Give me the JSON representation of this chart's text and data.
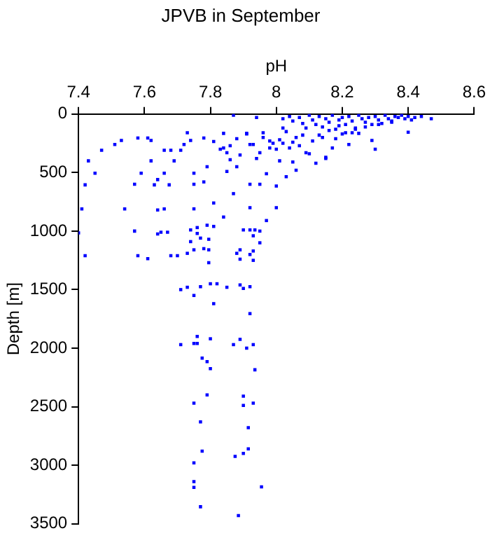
{
  "chart_data": {
    "type": "scatter",
    "title": "JPVB in September",
    "xlabel": "pH",
    "ylabel": "Depth [m]",
    "xlim": [
      7.4,
      8.6
    ],
    "xticks": [
      7.4,
      7.6,
      7.8,
      8,
      8.2,
      8.4,
      8.6
    ],
    "ylim": [
      3500,
      0
    ],
    "yticks": [
      0,
      500,
      1000,
      1500,
      2000,
      2500,
      3000,
      3500
    ],
    "grid": false,
    "legend": false,
    "marker": "square",
    "series": [
      {
        "color": "#0000ff",
        "x": [
          7.41,
          7.42,
          7.43,
          7.45,
          7.47,
          7.51,
          7.53,
          7.54,
          7.57,
          7.58,
          7.59,
          7.61,
          7.62,
          7.62,
          7.63,
          7.64,
          7.64,
          7.66,
          7.66,
          7.66,
          7.675,
          7.68,
          7.69,
          7.71,
          7.72,
          7.73,
          7.75,
          7.74,
          7.75,
          7.75,
          7.78,
          7.78,
          7.79,
          7.81,
          7.81,
          7.84,
          7.84,
          7.84,
          7.87,
          7.87,
          7.85,
          7.86,
          7.88,
          7.91,
          7.92,
          7.92,
          7.94,
          7.94,
          7.95,
          7.97,
          7.98,
          8.0,
          8.0,
          8.01,
          8.03,
          8.05,
          8.06,
          8.09,
          8.12,
          8.15,
          8.17,
          8.22,
          8.25,
          8.3,
          8.29,
          8.4,
          8.47,
          8.44,
          7.4,
          7.42,
          7.57,
          7.58,
          7.61,
          7.64,
          7.65,
          7.67,
          7.68,
          7.7,
          7.71,
          7.71,
          7.73,
          7.73,
          7.74,
          7.74,
          7.75,
          7.75,
          7.75,
          7.76,
          7.76,
          7.76,
          7.76,
          7.77,
          7.77,
          7.775,
          7.78,
          7.79,
          7.79,
          7.795,
          7.795,
          7.795,
          7.8,
          7.8,
          7.8,
          7.81,
          7.81,
          7.82,
          7.85,
          7.87,
          7.88,
          7.89,
          7.89,
          7.89,
          7.89,
          7.9,
          7.9,
          7.91,
          7.92,
          7.92,
          7.92,
          7.92,
          7.93,
          7.93,
          7.93,
          7.93,
          7.935,
          7.935,
          7.95,
          7.95,
          7.97,
          7.79,
          7.75,
          7.77,
          7.775,
          7.75,
          7.75,
          7.75,
          7.77,
          7.9,
          7.9,
          7.93,
          7.915,
          7.915,
          7.9,
          7.875,
          7.955,
          7.885,
          8.02,
          8.04,
          8.05,
          8.07,
          8.08,
          8.1,
          8.11,
          8.12,
          8.13,
          8.14,
          8.15,
          8.16,
          8.17,
          8.18,
          8.19,
          8.2,
          8.21,
          8.22,
          8.23,
          8.24,
          8.25,
          8.26,
          8.27,
          8.28,
          8.29,
          8.3,
          8.31,
          8.32,
          8.33,
          8.34,
          8.35,
          8.36,
          8.37,
          8.38,
          8.39,
          8.4,
          8.41,
          8.42,
          8.03,
          8.06,
          8.09,
          8.13,
          8.16,
          8.19,
          8.21,
          8.24,
          8.27,
          8.31,
          8.35,
          8.02,
          8.05,
          8.08,
          8.11,
          8.14,
          8.18,
          8.2,
          8.23,
          7.96,
          7.99,
          8.01,
          8.04,
          7.92,
          7.95,
          7.98,
          8.0,
          7.86,
          7.89,
          7.93,
          7.83,
          7.85,
          7.88,
          7.91,
          7.96,
          8.02,
          8.07,
          8.1,
          8.15
        ],
        "values": [
          810,
          605,
          400,
          505,
          310,
          260,
          225,
          810,
          600,
          205,
          505,
          205,
          400,
          225,
          605,
          820,
          560,
          310,
          810,
          505,
          605,
          310,
          400,
          310,
          260,
          160,
          505,
          225,
          600,
          810,
          205,
          580,
          450,
          235,
          760,
          165,
          290,
          880,
          10,
          680,
          490,
          390,
          450,
          165,
          600,
          800,
          30,
          380,
          600,
          510,
          290,
          800,
          615,
          400,
          535,
          410,
          480,
          330,
          420,
          370,
          290,
          260,
          165,
          300,
          225,
          155,
          40,
          20,
          1015,
          1210,
          1000,
          1210,
          1235,
          1025,
          1010,
          1010,
          1210,
          1210,
          1500,
          1970,
          1480,
          1190,
          990,
          1090,
          1160,
          1550,
          1960,
          970,
          1020,
          1900,
          1960,
          1060,
          1475,
          2085,
          1150,
          2115,
          950,
          1070,
          1160,
          1270,
          1450,
          1920,
          2175,
          960,
          1620,
          1450,
          1480,
          1970,
          1190,
          1160,
          1240,
          1460,
          1925,
          1490,
          990,
          2000,
          990,
          1200,
          1475,
          1705,
          1040,
          1250,
          1970,
          1170,
          2185,
          990,
          1100,
          1000,
          910,
          2400,
          2470,
          2630,
          2880,
          2980,
          3140,
          3190,
          3355,
          2410,
          2490,
          2470,
          2680,
          2860,
          2900,
          2925,
          3185,
          3430,
          40,
          20,
          60,
          30,
          80,
          10,
          50,
          90,
          20,
          110,
          40,
          70,
          10,
          130,
          50,
          30,
          90,
          20,
          60,
          120,
          10,
          40,
          70,
          30,
          90,
          20,
          50,
          80,
          10,
          40,
          60,
          20,
          30,
          10,
          40,
          20,
          50,
          30,
          150,
          200,
          120,
          180,
          140,
          100,
          160,
          130,
          110,
          90,
          70,
          120,
          240,
          180,
          230,
          200,
          210,
          170,
          160,
          200,
          250,
          220,
          290,
          260,
          330,
          230,
          300,
          270,
          350,
          260,
          300,
          330,
          210,
          170,
          160,
          250,
          270,
          340,
          380
        ]
      }
    ]
  }
}
